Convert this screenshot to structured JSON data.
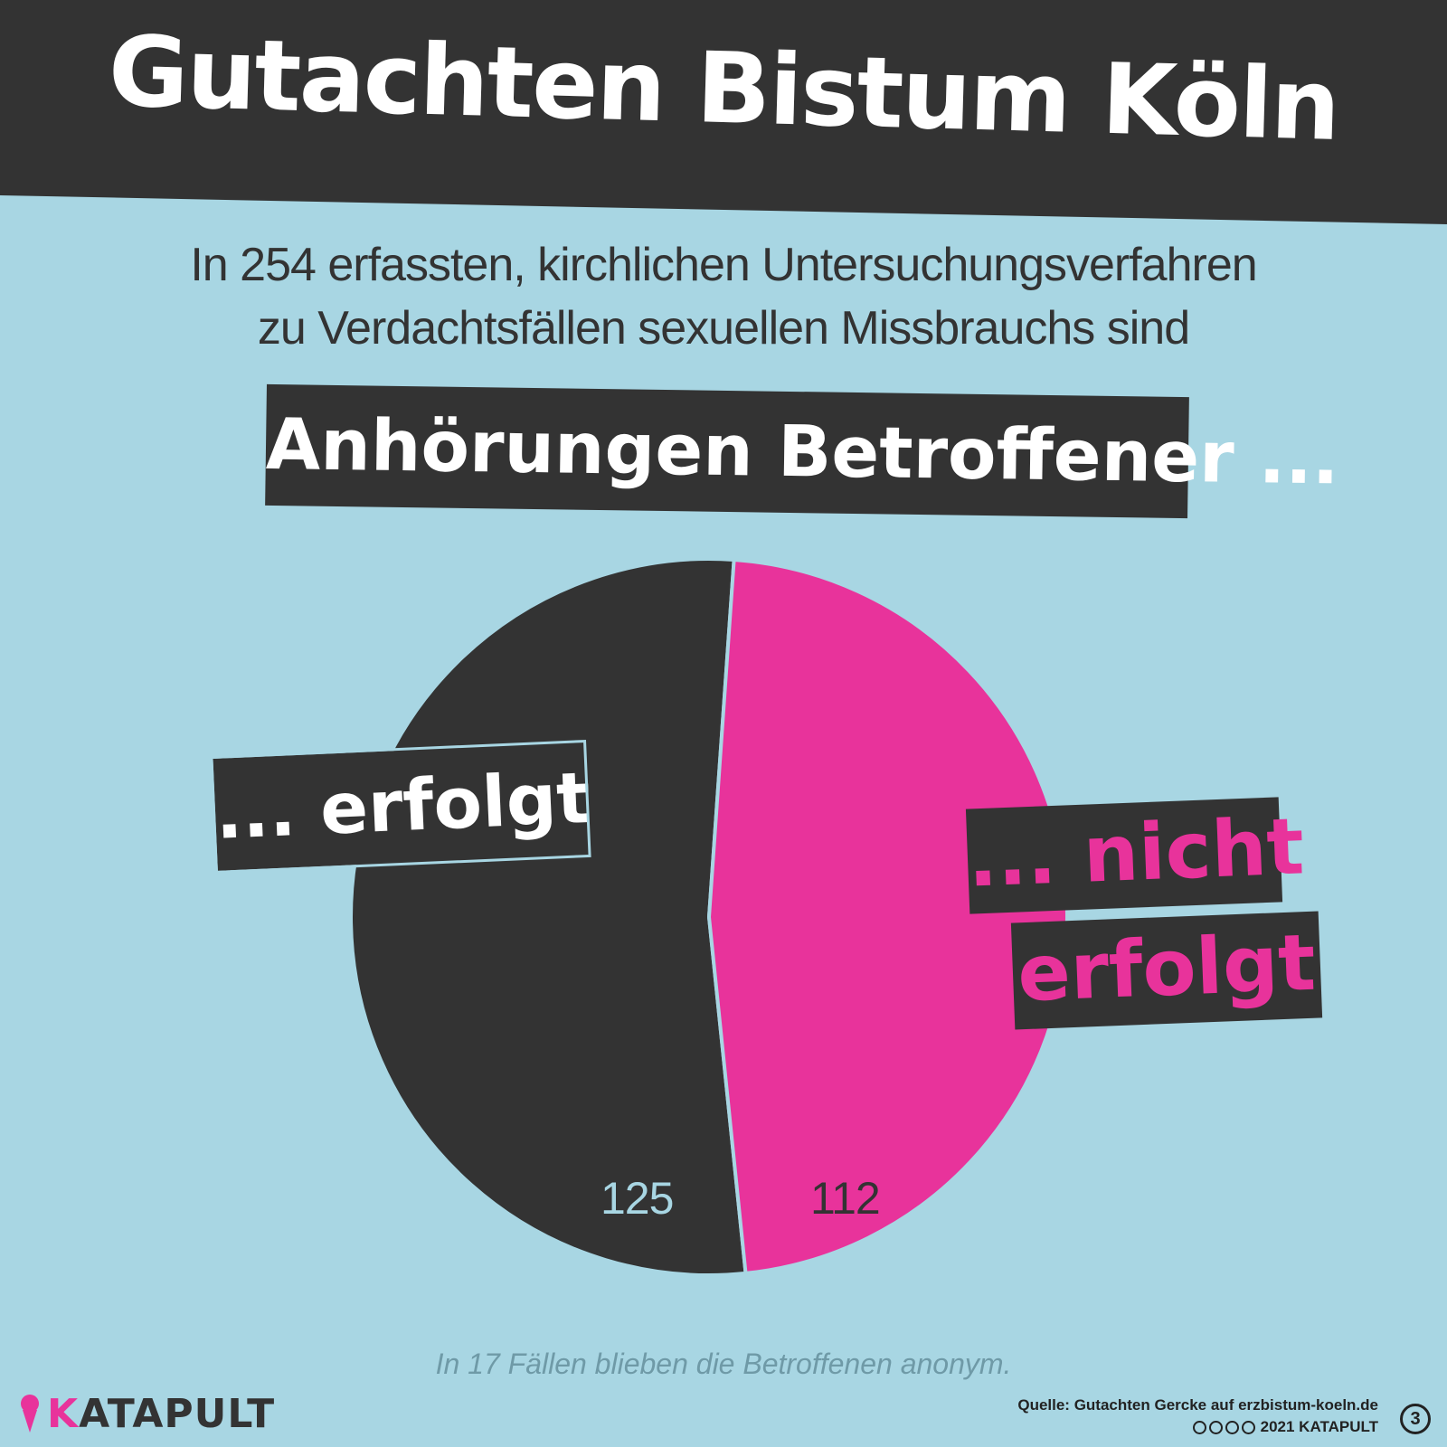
{
  "header": {
    "title": "Gutachten Bistum Köln",
    "subtitle_line1": "In 254 erfassten, kirchlichen Untersuchungsverfahren",
    "subtitle_line2": "zu Verdachtsfällen sexuellen Missbrauchs sind",
    "highlight": "Anhörungen Betroffener ..."
  },
  "chart_data": {
    "type": "pie",
    "title": "Gutachten Bistum Köln",
    "slices": [
      {
        "label": "... erfolgt",
        "value": 125,
        "color": "#333333"
      },
      {
        "label": "... nicht erfolgt",
        "value": 112,
        "color": "#e8339b"
      }
    ],
    "value_labels": [
      "125",
      "112"
    ]
  },
  "labels": {
    "yes": "... erfolgt",
    "no_line1": "... nicht",
    "no_line2": "erfolgt"
  },
  "footnote": "In 17 Fällen blieben die Betroffenen anonym.",
  "footer": {
    "brand_k": "K",
    "brand_rest": "ATAPULT",
    "source": "Quelle: Gutachten Gercke auf erzbistum-koeln.de",
    "copyright": "2021 KATAPULT",
    "page_number": "3"
  },
  "colors": {
    "background": "#a8d6e3",
    "dark": "#333333",
    "accent": "#e8339b"
  },
  "icons": [
    "ice-cream-logo-icon",
    "creative-commons-icon",
    "by-icon",
    "nc-icon",
    "nd-icon"
  ]
}
